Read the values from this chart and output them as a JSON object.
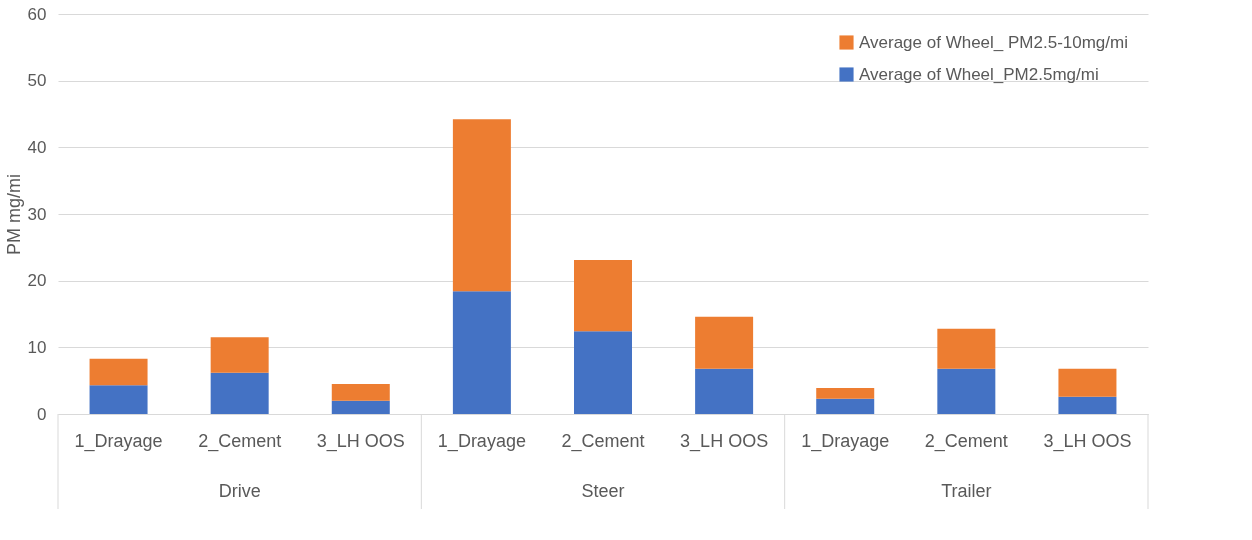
{
  "chart_data": {
    "type": "bar",
    "stacked": true,
    "ylabel": "PM mg/mi",
    "categories": [
      "1_Drayage",
      "2_Cement",
      "3_LH OOS",
      "1_Drayage",
      "2_Cement",
      "3_LH OOS",
      "1_Drayage",
      "2_Cement",
      "3_LH OOS"
    ],
    "annotations": [
      "Drive",
      "Steer",
      "Trailer"
    ],
    "series": [
      {
        "name": "Average of Wheel_PM2.5mg/mi",
        "color": "#4472c4",
        "values": [
          4.3,
          6.2,
          2.0,
          18.4,
          12.4,
          6.8,
          2.3,
          6.8,
          2.6
        ]
      },
      {
        "name": "Average of Wheel_ PM2.5-10mg/mi",
        "color": "#ed7d31",
        "values": [
          4.0,
          5.3,
          2.5,
          25.8,
          10.7,
          7.8,
          1.6,
          6.0,
          4.2
        ]
      }
    ],
    "ylim": [
      0,
      60
    ],
    "yticks": [
      0,
      10,
      20,
      30,
      40,
      50,
      60
    ],
    "grid": "y",
    "legend": "top right"
  }
}
